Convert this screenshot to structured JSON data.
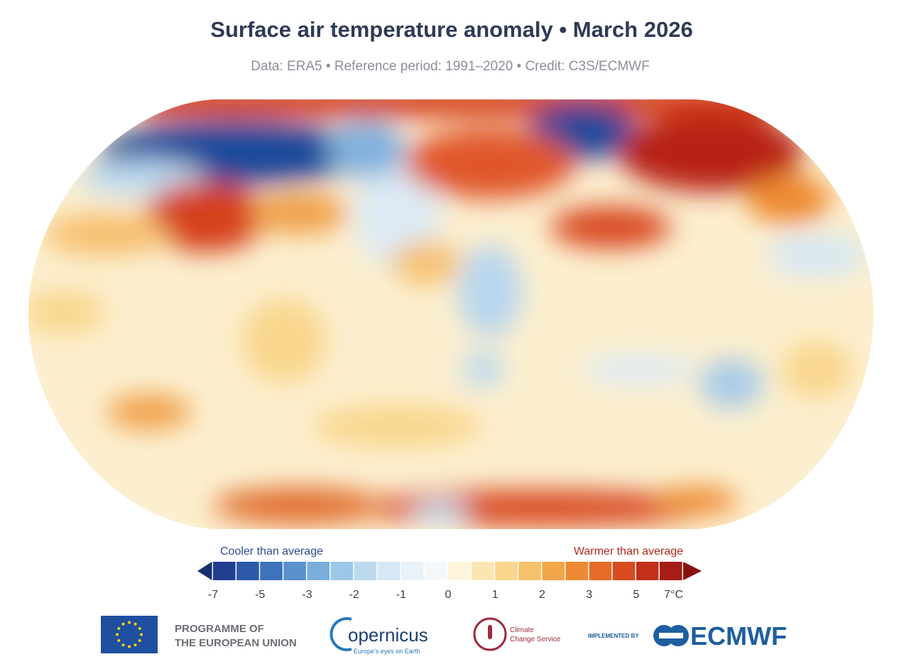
{
  "header": {
    "title": "Surface air temperature anomaly • March 2026",
    "subtitle": "Data: ERA5 • Reference period: 1991–2020 • Credit: C3S/ECMWF"
  },
  "legend": {
    "cool_label": "Cooler than average",
    "warm_label": "Warmer than average",
    "ticks": [
      "-7",
      "-5",
      "-3",
      "-2",
      "-1",
      "0",
      "1",
      "2",
      "3",
      "5",
      "7°C"
    ],
    "low_color": "#16306e",
    "high_color": "#8b1010",
    "colors": [
      "#213f8f",
      "#2c5aa9",
      "#3d72bd",
      "#5990cd",
      "#79aedb",
      "#9cc7e6",
      "#bcdaef",
      "#d6e8f4",
      "#e8f2f8",
      "#f4f8fa",
      "#fdf5dc",
      "#fbe6b2",
      "#f9d68c",
      "#f6c269",
      "#f2a649",
      "#ee8a33",
      "#e66c27",
      "#d84b1e",
      "#c2301a",
      "#a61c17"
    ]
  },
  "footer": {
    "eu_line1": "PROGRAMME OF",
    "eu_line2": "THE EUROPEAN UNION",
    "copernicus": "opernicus",
    "copernicus_tagline": "Europe's eyes on Earth",
    "c3s_line1": "Climate",
    "c3s_line2": "Change Service",
    "implemented_by": "IMPLEMENTED BY",
    "ecmwf": "ECMWF"
  }
}
